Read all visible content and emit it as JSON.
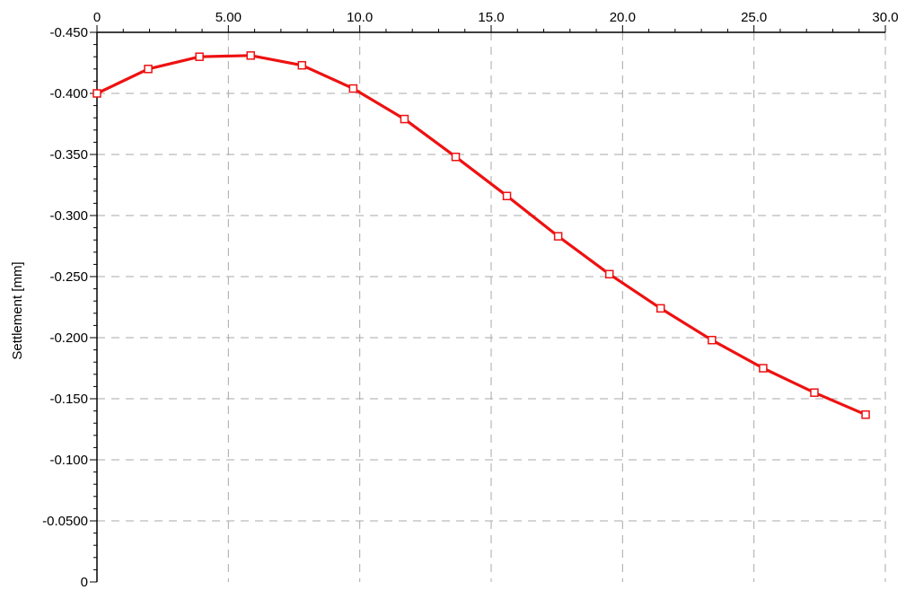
{
  "chart_data": {
    "type": "line",
    "title": "",
    "xlabel": "",
    "ylabel": "Settlement [mm]",
    "xlim": [
      0,
      30
    ],
    "ylim": [
      0,
      -0.45
    ],
    "x_axis_position": "top",
    "y_axis_inverted": true,
    "grid": true,
    "legend": "none",
    "x_ticks": [
      "0",
      "5.00",
      "10.0",
      "15.0",
      "20.0",
      "25.0",
      "30.0"
    ],
    "y_ticks": [
      "0",
      "-0.0500",
      "-0.100",
      "-0.150",
      "-0.200",
      "-0.250",
      "-0.300",
      "-0.350",
      "-0.400",
      "-0.450"
    ],
    "series": [
      {
        "color": "#ee1111",
        "marker": "square",
        "x": [
          0,
          1.95,
          3.9,
          5.85,
          7.8,
          9.75,
          11.7,
          13.65,
          15.6,
          17.55,
          19.5,
          21.45,
          23.4,
          25.35,
          27.3,
          29.25
        ],
        "y": [
          -0.4,
          -0.42,
          -0.43,
          -0.431,
          -0.423,
          -0.404,
          -0.379,
          -0.348,
          -0.316,
          -0.283,
          -0.252,
          -0.224,
          -0.198,
          -0.175,
          -0.155,
          -0.137
        ]
      }
    ]
  }
}
